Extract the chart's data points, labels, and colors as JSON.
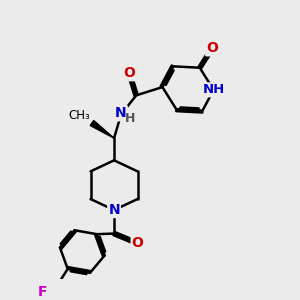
{
  "background_color": "#ebebeb",
  "bond_color": "#000000",
  "bond_width": 1.8,
  "atom_colors": {
    "O": "#cc0000",
    "N": "#0000cc",
    "F": "#cc00cc",
    "H": "#555555"
  },
  "font_size_atom": 10,
  "font_size_small": 8.5
}
